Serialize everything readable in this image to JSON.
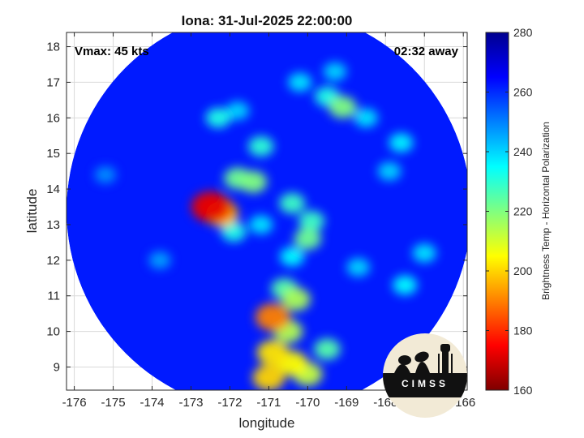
{
  "chart_data": {
    "type": "heatmap",
    "title": "Iona: 31-Jul-2025 22:00:00",
    "xlabel": "longitude",
    "ylabel": "latitude",
    "xlim": [
      -176.2,
      -165.9
    ],
    "ylim": [
      8.35,
      18.4
    ],
    "xticks": [
      -176,
      -175,
      -174,
      -173,
      -172,
      -171,
      -170,
      -169,
      -168,
      -167,
      -166
    ],
    "yticks": [
      9,
      10,
      11,
      12,
      13,
      14,
      15,
      16,
      17,
      18
    ],
    "grid": true,
    "annotations": {
      "vmax": "Vmax: 45 kts",
      "time_away": "02:32 away"
    },
    "colorbar": {
      "label": "Brightness Temp - Horizontal Polarization",
      "range": [
        160,
        280
      ],
      "ticks": [
        160,
        180,
        200,
        220,
        240,
        260,
        280
      ],
      "colors": [
        "#7f0000",
        "#ff0000",
        "#ff8000",
        "#ffff00",
        "#80ff80",
        "#00ffff",
        "#0080ff",
        "#0000ff",
        "#00008f"
      ]
    },
    "swath": {
      "center": [
        -171.0,
        13.4
      ],
      "radius_deg": 5.2
    },
    "background_value": 262,
    "features": [
      {
        "lon": -172.2,
        "lat": 13.3,
        "value": 200
      },
      {
        "lon": -172.5,
        "lat": 13.5,
        "value": 172
      },
      {
        "lon": -172.3,
        "lat": 13.4,
        "value": 190
      },
      {
        "lon": -171.4,
        "lat": 14.2,
        "value": 220
      },
      {
        "lon": -171.8,
        "lat": 14.3,
        "value": 222
      },
      {
        "lon": -171.2,
        "lat": 15.2,
        "value": 230
      },
      {
        "lon": -171.9,
        "lat": 12.8,
        "value": 232
      },
      {
        "lon": -171.2,
        "lat": 13.0,
        "value": 238
      },
      {
        "lon": -170.4,
        "lat": 13.6,
        "value": 228
      },
      {
        "lon": -170.0,
        "lat": 12.6,
        "value": 222
      },
      {
        "lon": -169.9,
        "lat": 13.1,
        "value": 228
      },
      {
        "lon": -170.4,
        "lat": 12.1,
        "value": 235
      },
      {
        "lon": -170.6,
        "lat": 11.2,
        "value": 225
      },
      {
        "lon": -170.3,
        "lat": 10.9,
        "value": 215
      },
      {
        "lon": -170.9,
        "lat": 10.4,
        "value": 190
      },
      {
        "lon": -170.5,
        "lat": 10.0,
        "value": 214
      },
      {
        "lon": -170.9,
        "lat": 9.4,
        "value": 202
      },
      {
        "lon": -170.4,
        "lat": 9.1,
        "value": 205
      },
      {
        "lon": -171.0,
        "lat": 8.7,
        "value": 200
      },
      {
        "lon": -170.0,
        "lat": 8.8,
        "value": 212
      },
      {
        "lon": -169.5,
        "lat": 9.5,
        "value": 225
      },
      {
        "lon": -169.1,
        "lat": 16.3,
        "value": 220
      },
      {
        "lon": -169.5,
        "lat": 16.6,
        "value": 232
      },
      {
        "lon": -170.2,
        "lat": 17.0,
        "value": 238
      },
      {
        "lon": -168.5,
        "lat": 16.0,
        "value": 238
      },
      {
        "lon": -169.3,
        "lat": 17.3,
        "value": 240
      },
      {
        "lon": -172.3,
        "lat": 16.0,
        "value": 232
      },
      {
        "lon": -171.8,
        "lat": 16.2,
        "value": 240
      },
      {
        "lon": -167.6,
        "lat": 15.3,
        "value": 236
      },
      {
        "lon": -167.9,
        "lat": 14.5,
        "value": 240
      },
      {
        "lon": -167.0,
        "lat": 12.2,
        "value": 238
      },
      {
        "lon": -167.5,
        "lat": 11.3,
        "value": 235
      },
      {
        "lon": -168.7,
        "lat": 11.8,
        "value": 240
      },
      {
        "lon": -175.2,
        "lat": 14.4,
        "value": 248
      },
      {
        "lon": -173.8,
        "lat": 12.0,
        "value": 246
      }
    ]
  },
  "logo": {
    "text": "CIMSS"
  }
}
